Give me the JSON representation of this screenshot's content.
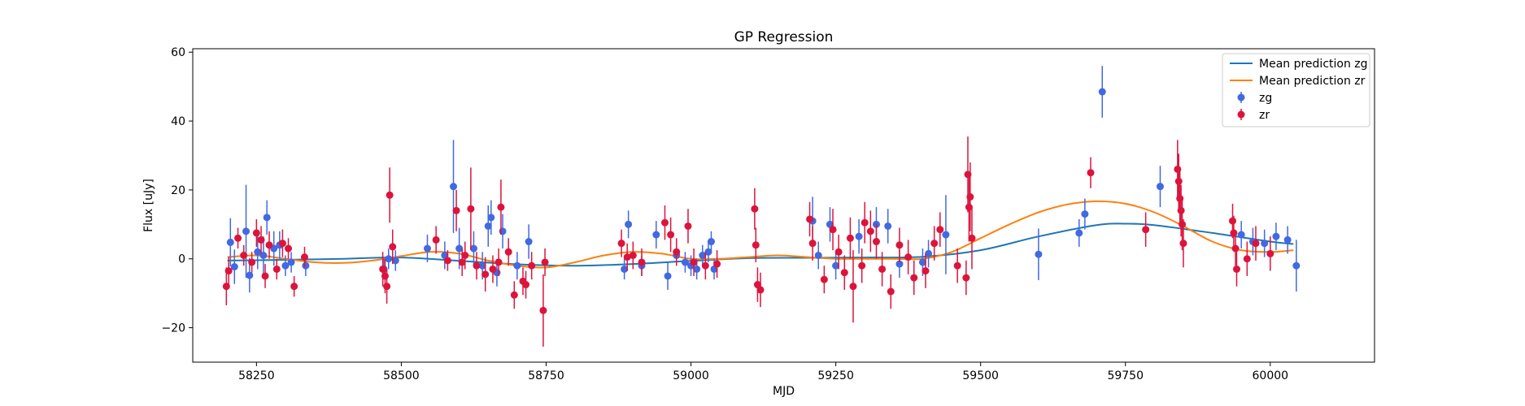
{
  "chart_data": {
    "type": "scatter",
    "title": "GP Regression",
    "xlabel": "MJD",
    "ylabel": "Flux [uJy]",
    "xlim": [
      58140,
      60180
    ],
    "ylim": [
      -30,
      61
    ],
    "xticks": [
      58250,
      58500,
      58750,
      59000,
      59250,
      59500,
      59750,
      60000
    ],
    "yticks": [
      -20,
      0,
      20,
      40,
      60
    ],
    "legend_position": "top-right",
    "grid": false,
    "legend": [
      "Mean prediction zg",
      "Mean prediction zr",
      "zg",
      "zr"
    ],
    "series": [
      {
        "name": "Mean prediction zg",
        "kind": "line",
        "color": "#1f77b4",
        "x": [
          58200,
          58300,
          58400,
          58500,
          58600,
          58700,
          58800,
          58900,
          59000,
          59100,
          59200,
          59300,
          59400,
          59500,
          59600,
          59700,
          59750,
          59800,
          59900,
          60000,
          60040
        ],
        "y": [
          -0.5,
          -0.3,
          0.0,
          0.4,
          -0.6,
          -1.6,
          -2.0,
          -1.5,
          -0.6,
          0.2,
          0.3,
          0.4,
          0.6,
          2.5,
          6.5,
          9.8,
          10.2,
          9.8,
          7.5,
          5.0,
          4.3
        ]
      },
      {
        "name": "Mean prediction zr",
        "kind": "line",
        "color": "#ff7f0e",
        "x": [
          58200,
          58250,
          58300,
          58350,
          58400,
          58450,
          58500,
          58550,
          58600,
          58650,
          58700,
          58750,
          58800,
          58850,
          58900,
          58950,
          59000,
          59050,
          59100,
          59150,
          59200,
          59250,
          59300,
          59350,
          59400,
          59450,
          59500,
          59550,
          59600,
          59650,
          59700,
          59750,
          59800,
          59850,
          59900,
          59950,
          60000,
          60040
        ],
        "y": [
          0.5,
          1.0,
          0.0,
          -1.0,
          -1.2,
          -0.5,
          0.8,
          2.0,
          1.5,
          -0.5,
          -2.0,
          -2.5,
          -1.0,
          1.0,
          2.0,
          1.5,
          0.0,
          0.0,
          0.5,
          1.0,
          0.5,
          0.0,
          0.0,
          0.0,
          0.0,
          2.0,
          6.0,
          10.0,
          13.5,
          15.8,
          16.7,
          16.0,
          13.5,
          9.5,
          5.0,
          2.5,
          2.0,
          2.5
        ]
      },
      {
        "name": "zg",
        "kind": "errorbar",
        "color": "#4169e1",
        "x": [
          58205,
          58212,
          58232,
          58238,
          58252,
          58262,
          58268,
          58280,
          58290,
          58300,
          58310,
          58335,
          58470,
          58478,
          58490,
          58545,
          58575,
          58590,
          58600,
          58625,
          58640,
          58650,
          58655,
          58665,
          58675,
          58700,
          58720,
          58885,
          58892,
          58915,
          58940,
          58960,
          58975,
          58990,
          59000,
          59010,
          59020,
          59030,
          59035,
          59040,
          59210,
          59220,
          59240,
          59250,
          59290,
          59320,
          59340,
          59360,
          59400,
          59410,
          59440,
          59600,
          59670,
          59680,
          59710,
          59810,
          59950,
          59970,
          59990,
          60010,
          60030,
          60045
        ],
        "y": [
          4.8,
          -2.3,
          8.0,
          -4.8,
          2.0,
          1.0,
          12.0,
          3.0,
          4.0,
          -2.0,
          -1.0,
          -2.0,
          -3.0,
          0.0,
          -0.5,
          3.0,
          1.0,
          21.0,
          3.0,
          3.0,
          -2.0,
          9.5,
          12.0,
          -4.0,
          8.0,
          -2.0,
          5.0,
          -3.0,
          10.0,
          -2.0,
          7.0,
          -5.0,
          1.0,
          -1.0,
          -2.0,
          -3.0,
          1.0,
          2.0,
          5.0,
          -3.0,
          11.0,
          1.0,
          10.0,
          -2.0,
          6.5,
          10.0,
          9.5,
          -1.5,
          -1.0,
          1.5,
          7.0,
          1.3,
          7.5,
          13.0,
          48.5,
          21.0,
          7.0,
          5.0,
          4.5,
          6.5,
          5.5,
          -2.0
        ],
        "err": [
          7.0,
          5.0,
          13.5,
          5.0,
          5.0,
          5.5,
          5.0,
          5.0,
          4.0,
          3.0,
          3.0,
          3.0,
          3.0,
          3.0,
          3.0,
          4.0,
          4.0,
          13.5,
          6.0,
          5.0,
          4.0,
          6.0,
          5.0,
          4.0,
          5.0,
          4.0,
          5.0,
          3.0,
          4.0,
          3.0,
          4.0,
          4.0,
          3.0,
          3.0,
          3.0,
          3.0,
          3.0,
          3.0,
          3.0,
          3.0,
          7.0,
          4.0,
          5.0,
          4.0,
          5.0,
          5.0,
          5.0,
          4.0,
          4.0,
          4.0,
          11.5,
          7.5,
          4.0,
          4.5,
          7.5,
          6.0,
          4.0,
          4.0,
          4.0,
          4.0,
          4.0,
          7.5
        ]
      },
      {
        "name": "zr",
        "kind": "errorbar",
        "color": "#dc143c",
        "x": [
          58198,
          58202,
          58218,
          58228,
          58242,
          58250,
          58258,
          58265,
          58272,
          58285,
          58295,
          58305,
          58315,
          58333,
          58468,
          58472,
          58475,
          58480,
          58485,
          58560,
          58580,
          58595,
          58605,
          58610,
          58620,
          58630,
          58645,
          58658,
          58668,
          58672,
          58685,
          58695,
          58710,
          58715,
          58725,
          58745,
          58748,
          58880,
          58890,
          58900,
          58915,
          58955,
          58965,
          58975,
          58995,
          59005,
          59025,
          59045,
          59110,
          59112,
          59115,
          59120,
          59205,
          59210,
          59230,
          59245,
          59255,
          59265,
          59275,
          59280,
          59295,
          59300,
          59310,
          59320,
          59330,
          59345,
          59360,
          59375,
          59385,
          59405,
          59420,
          59430,
          59460,
          59475,
          59478,
          59480,
          59482,
          59485,
          59690,
          59785,
          59840,
          59842,
          59844,
          59846,
          59848,
          59850,
          59935,
          59937,
          59940,
          59942,
          59960,
          59975,
          60000
        ],
        "y": [
          -8.0,
          -3.5,
          6.0,
          1.0,
          -1.0,
          7.5,
          5.5,
          -5.0,
          4.0,
          -3.0,
          4.5,
          3.0,
          -8.0,
          0.5,
          -3.0,
          -5.0,
          -8.0,
          18.5,
          3.5,
          5.5,
          -0.5,
          14.0,
          -1.0,
          1.0,
          14.5,
          -2.0,
          -4.5,
          -3.0,
          -1.0,
          15.0,
          2.0,
          -10.5,
          -6.5,
          -7.5,
          -2.0,
          -15.0,
          -1.0,
          4.5,
          0.5,
          1.0,
          -1.0,
          10.5,
          7.0,
          2.0,
          9.5,
          -1.0,
          -2.0,
          -1.5,
          14.5,
          4.0,
          -7.5,
          -9.0,
          11.5,
          4.5,
          -6.0,
          8.5,
          2.0,
          -4.0,
          6.0,
          -8.0,
          -2.0,
          10.5,
          8.0,
          5.0,
          -3.0,
          -9.5,
          4.0,
          0.5,
          -5.5,
          -3.5,
          4.5,
          8.5,
          -2.0,
          -5.5,
          24.5,
          15.0,
          18.0,
          6.0,
          25.0,
          8.5,
          26.0,
          22.5,
          17.5,
          14.0,
          10.0,
          4.5,
          11.0,
          7.5,
          3.0,
          -3.0,
          0.0,
          4.5,
          1.5
        ],
        "err": [
          5.5,
          4.0,
          3.0,
          3.0,
          3.0,
          4.0,
          4.0,
          3.5,
          4.0,
          3.0,
          4.0,
          3.0,
          3.0,
          3.0,
          5.0,
          5.0,
          5.0,
          8.0,
          5.0,
          4.0,
          3.0,
          6.0,
          4.0,
          4.0,
          12.0,
          4.0,
          5.0,
          4.0,
          4.0,
          8.0,
          4.0,
          4.0,
          4.0,
          4.0,
          4.0,
          10.5,
          4.0,
          4.0,
          4.0,
          4.0,
          4.0,
          5.0,
          5.0,
          4.0,
          5.0,
          4.0,
          4.0,
          4.0,
          6.0,
          5.0,
          5.0,
          5.0,
          5.0,
          5.0,
          4.0,
          6.0,
          5.0,
          5.0,
          6.0,
          10.5,
          5.0,
          6.0,
          6.0,
          5.0,
          5.0,
          5.0,
          5.0,
          5.0,
          5.0,
          5.0,
          5.0,
          5.0,
          5.0,
          5.0,
          11.0,
          10.0,
          10.0,
          9.0,
          4.5,
          5.0,
          8.5,
          8.0,
          8.0,
          7.5,
          7.5,
          7.0,
          5.0,
          5.0,
          5.0,
          5.0,
          5.0,
          5.0,
          5.0
        ]
      }
    ]
  }
}
